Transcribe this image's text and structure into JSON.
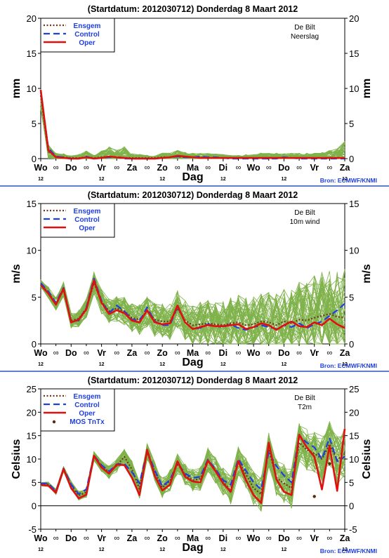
{
  "page": {
    "background": "#ffffff",
    "divider_color": "#3050c0"
  },
  "styles": {
    "ensgem_color": "#6b3a1e",
    "control_color": "#1f3fe0",
    "oper_color": "#e01010",
    "member_color": "#7fb24a",
    "mos_color": "#5a2a10",
    "legend_text_color": "#1f3fe0",
    "source_color": "#1f3fe0"
  },
  "x_axis": {
    "days": [
      "Wo",
      "Do",
      "Vr",
      "Za",
      "Zo",
      "Ma",
      "Di",
      "Wo",
      "Do",
      "Vr",
      "Za"
    ],
    "xlabel": "Dag",
    "hour_label": "12",
    "midnight_symbol": "∞"
  },
  "chart_data": [
    {
      "type": "line",
      "title": "(Startdatum: 2012030712)   Donderdag  8 Maart    2012",
      "station": "De Bilt",
      "variable": "Neerslag",
      "ylabel_left": "mm",
      "ylabel_right": "mm",
      "xlabel": "Dag",
      "ylim": [
        0,
        20
      ],
      "yticks": [
        0,
        5,
        10,
        15,
        20
      ],
      "x": [
        0,
        1,
        2,
        3,
        4,
        5,
        6,
        7,
        8,
        9,
        10,
        11,
        12,
        13,
        14,
        15,
        16,
        17,
        18,
        19,
        20,
        21,
        22,
        23,
        24,
        25,
        26,
        27,
        28,
        29,
        30,
        31,
        32,
        33,
        34,
        35,
        36,
        37,
        38,
        39,
        40
      ],
      "legend": [
        "Ensgem",
        "Control",
        "Oper"
      ],
      "source": "Bron: ECMWF/KNMI",
      "series": [
        {
          "name": "Ensgem",
          "style": "dotted",
          "values": [
            9.0,
            1.0,
            0.3,
            0.2,
            0.1,
            0.1,
            0.2,
            0.1,
            0.2,
            0.3,
            0.2,
            0.1,
            0.1,
            0.1,
            0.1,
            0.1,
            0.2,
            0.2,
            0.3,
            0.2,
            0.2,
            0.2,
            0.1,
            0.1,
            0.1,
            0.1,
            0.1,
            0.1,
            0.1,
            0.1,
            0.1,
            0.1,
            0.1,
            0.1,
            0.1,
            0.1,
            0.1,
            0.1,
            0.1,
            0.1,
            0.1
          ]
        },
        {
          "name": "Control",
          "style": "dashed",
          "values": [
            9.5,
            1.5,
            0.3,
            0.2,
            0,
            0,
            0.3,
            0,
            0.1,
            0.2,
            0.2,
            0,
            0,
            0,
            0,
            0,
            0.1,
            0.2,
            0.3,
            0.2,
            0.2,
            0.3,
            0.2,
            0.2,
            0.1,
            0,
            0,
            0,
            0,
            0,
            0,
            0,
            0.2,
            0.1,
            0,
            0,
            0,
            0,
            0,
            0,
            0
          ]
        },
        {
          "name": "Oper",
          "style": "solid",
          "values": [
            9.8,
            1.2,
            0.2,
            0.1,
            0,
            0,
            0.2,
            0,
            0.1,
            0.3,
            0.2,
            0.1,
            0,
            0,
            0,
            0,
            0.1,
            0.2,
            0.4,
            0.3,
            0.2,
            0.1,
            0.1,
            0.1,
            0.1,
            0.1,
            0.1,
            0.1,
            0.1,
            0.1,
            0.1,
            0.1,
            0.1,
            0.1,
            0.1,
            0.1,
            0.1,
            0.1,
            0.1,
            0.1,
            0.1
          ]
        }
      ],
      "ensemble_band": {
        "base": [
          8.5,
          1.0,
          0.3,
          0.2,
          0.1,
          0.1,
          0.3,
          0.1,
          0.3,
          0.5,
          0.3,
          0.2,
          0.1,
          0.1,
          0.1,
          0.1,
          0.2,
          0.2,
          0.4,
          0.3,
          0.2,
          0.2,
          0.2,
          0.2,
          0.1,
          0.1,
          0.1,
          0.1,
          0.1,
          0.2,
          0.2,
          0.2,
          0.2,
          0.2,
          0.2,
          0.2,
          0.2,
          0.2,
          0.3,
          0.3,
          0.5
        ],
        "spread": [
          1.5,
          1.0,
          0.5,
          0.5,
          0.3,
          0.5,
          0.8,
          0.4,
          0.8,
          1.2,
          1.0,
          1.5,
          0.6,
          0.5,
          0.4,
          0.3,
          0.6,
          0.6,
          0.8,
          0.6,
          0.6,
          0.6,
          0.6,
          0.5,
          0.5,
          0.4,
          0.4,
          0.5,
          0.5,
          0.6,
          0.6,
          0.6,
          0.5,
          0.6,
          0.6,
          0.6,
          0.6,
          0.7,
          0.9,
          1.1,
          2.0
        ]
      }
    },
    {
      "type": "line",
      "title": "(Startdatum: 2012030712)   Donderdag  8 Maart    2012",
      "station": "De Bilt",
      "variable": "10m wind",
      "ylabel_left": "m/s",
      "ylabel_right": "m/s",
      "xlabel": "Dag",
      "ylim": [
        0,
        15
      ],
      "yticks": [
        0,
        5,
        10,
        15
      ],
      "x": [
        0,
        1,
        2,
        3,
        4,
        5,
        6,
        7,
        8,
        9,
        10,
        11,
        12,
        13,
        14,
        15,
        16,
        17,
        18,
        19,
        20,
        21,
        22,
        23,
        24,
        25,
        26,
        27,
        28,
        29,
        30,
        31,
        32,
        33,
        34,
        35,
        36,
        37,
        38,
        39,
        40
      ],
      "legend": [
        "Ensgem",
        "Control",
        "Oper"
      ],
      "source": "Bron: ECMWF/KNMI",
      "series": [
        {
          "name": "Ensgem",
          "style": "dotted",
          "values": [
            6.4,
            5.5,
            4.3,
            5.8,
            2.5,
            2.7,
            3.8,
            6.5,
            4.5,
            3.5,
            3.8,
            3.5,
            2.8,
            2.6,
            3.5,
            2.6,
            2.4,
            2.4,
            3.8,
            2.5,
            2.0,
            2.1,
            2.2,
            2.1,
            2.0,
            2.2,
            2.3,
            2.0,
            2.1,
            2.4,
            2.3,
            2.0,
            2.4,
            2.2,
            2.6,
            2.5,
            2.8,
            3.0,
            3.2,
            2.9,
            2.8
          ]
        },
        {
          "name": "Control",
          "style": "dashed",
          "values": [
            6.5,
            5.6,
            4.4,
            6.0,
            2.4,
            2.5,
            3.9,
            7.0,
            4.6,
            3.3,
            4.1,
            3.5,
            2.6,
            2.5,
            3.9,
            2.4,
            2.0,
            2.0,
            4.0,
            2.3,
            1.6,
            1.7,
            2.1,
            1.9,
            1.8,
            2.1,
            1.7,
            1.5,
            1.8,
            2.0,
            1.8,
            1.6,
            2.0,
            1.8,
            2.2,
            1.7,
            2.1,
            2.4,
            3.0,
            3.6,
            4.3
          ]
        },
        {
          "name": "Oper",
          "style": "solid",
          "values": [
            6.3,
            5.4,
            4.2,
            5.9,
            2.3,
            2.6,
            3.7,
            6.8,
            4.4,
            3.2,
            3.6,
            3.3,
            2.5,
            2.3,
            3.6,
            2.3,
            2.1,
            2.2,
            4.1,
            2.3,
            1.6,
            1.8,
            2.0,
            1.9,
            1.9,
            2.0,
            2.1,
            1.6,
            1.8,
            2.2,
            2.0,
            1.5,
            2.0,
            2.4,
            1.9,
            1.8,
            2.3,
            2.0,
            2.7,
            2.1,
            1.7
          ]
        }
      ],
      "ensemble_band": {
        "base": [
          6.4,
          5.5,
          4.3,
          5.8,
          2.5,
          2.7,
          3.8,
          6.5,
          4.5,
          3.5,
          3.8,
          3.5,
          2.8,
          2.6,
          3.5,
          2.6,
          2.4,
          2.4,
          3.8,
          2.5,
          2.0,
          2.1,
          2.2,
          2.1,
          2.0,
          2.2,
          2.3,
          2.0,
          2.1,
          2.4,
          2.3,
          2.0,
          2.4,
          2.2,
          2.6,
          2.5,
          2.8,
          3.0,
          3.2,
          2.9,
          2.8
        ],
        "spread": [
          0.5,
          0.6,
          0.7,
          0.8,
          0.8,
          0.9,
          1.0,
          1.2,
          1.3,
          1.3,
          1.4,
          1.5,
          1.5,
          1.6,
          1.7,
          1.8,
          1.9,
          2.0,
          2.1,
          2.2,
          2.3,
          2.4,
          2.5,
          2.6,
          2.7,
          2.8,
          2.9,
          3.0,
          3.1,
          3.2,
          3.3,
          3.4,
          3.6,
          3.8,
          4.0,
          4.2,
          4.5,
          4.8,
          5.0,
          5.2,
          5.5
        ]
      }
    },
    {
      "type": "line",
      "title": "(Startdatum: 2012030712)   Donderdag  8 Maart    2012",
      "station": "De Bilt",
      "variable": "T2m",
      "ylabel_left": "Celsius",
      "ylabel_right": "Celsius",
      "xlabel": "Dag",
      "ylim": [
        -5,
        25
      ],
      "yticks": [
        -5,
        0,
        5,
        10,
        15,
        20,
        25
      ],
      "x": [
        0,
        1,
        2,
        3,
        4,
        5,
        6,
        7,
        8,
        9,
        10,
        11,
        12,
        13,
        14,
        15,
        16,
        17,
        18,
        19,
        20,
        21,
        22,
        23,
        24,
        25,
        26,
        27,
        28,
        29,
        30,
        31,
        32,
        33,
        34,
        35,
        36,
        37,
        38,
        39,
        40
      ],
      "legend": [
        "Ensgem",
        "Control",
        "Oper",
        "MOS TnTx"
      ],
      "source": "Bron: ECMWF/KNMI",
      "series": [
        {
          "name": "Ensgem",
          "style": "dotted",
          "values": [
            4.6,
            4.6,
            3.0,
            7.8,
            4.4,
            2.2,
            2.9,
            10.6,
            8.5,
            7.2,
            8.6,
            10.5,
            7.8,
            3.6,
            11.5,
            7.3,
            3.9,
            5.3,
            9.0,
            6.7,
            5.5,
            5.8,
            9.8,
            7.6,
            5.2,
            3.2,
            9.6,
            6.7,
            3.8,
            2.5,
            12.0,
            6.0,
            4.8,
            3.8,
            13.5,
            12.0,
            11.2,
            10.0,
            13.2,
            9.8,
            11.2
          ]
        },
        {
          "name": "Control",
          "style": "dashed",
          "values": [
            4.8,
            4.8,
            3.1,
            8.0,
            4.6,
            2.5,
            3.5,
            10.8,
            8.7,
            7.4,
            8.9,
            9.0,
            7.2,
            4.8,
            11.7,
            7.6,
            4.2,
            5.5,
            9.2,
            6.9,
            6.0,
            6.2,
            9.9,
            7.8,
            5.5,
            4.5,
            10.0,
            7.5,
            5.0,
            3.5,
            11.5,
            8.5,
            6.5,
            5.0,
            15.0,
            13.5,
            12.5,
            10.0,
            14.5,
            9.5,
            10.5
          ]
        },
        {
          "name": "Oper",
          "style": "solid",
          "values": [
            4.5,
            4.3,
            2.8,
            7.9,
            3.8,
            1.6,
            2.4,
            10.7,
            8.2,
            6.9,
            8.8,
            8.7,
            6.0,
            2.3,
            12.0,
            6.4,
            3.3,
            4.5,
            9.5,
            6.2,
            5.2,
            5.0,
            9.7,
            7.4,
            4.8,
            3.0,
            9.6,
            5.5,
            2.3,
            0.6,
            13.5,
            5.7,
            3.0,
            2.3,
            15.2,
            12.5,
            10.5,
            3.5,
            12.8,
            3.2,
            16.5
          ]
        }
      ],
      "mos_tntx": [
        {
          "x": 36,
          "y": 2.0
        },
        {
          "x": 38,
          "y": 9.0
        }
      ],
      "ensemble_band": {
        "base": [
          4.6,
          4.6,
          3.0,
          7.8,
          4.4,
          2.2,
          2.9,
          10.6,
          8.5,
          7.2,
          8.6,
          10.5,
          7.8,
          3.6,
          11.5,
          7.3,
          3.9,
          5.3,
          9.0,
          6.7,
          5.5,
          5.8,
          9.8,
          7.6,
          5.2,
          3.2,
          9.6,
          6.7,
          3.8,
          2.5,
          12.0,
          6.0,
          4.8,
          3.8,
          13.5,
          12.0,
          11.2,
          10.0,
          13.2,
          9.8,
          11.2
        ],
        "spread": [
          0.4,
          0.5,
          0.6,
          0.6,
          0.9,
          1.0,
          1.1,
          1.0,
          1.2,
          1.4,
          1.4,
          1.6,
          1.8,
          2.0,
          1.8,
          2.0,
          2.2,
          2.4,
          2.2,
          2.3,
          2.4,
          2.6,
          2.6,
          2.8,
          3.0,
          3.2,
          3.2,
          3.5,
          3.6,
          3.8,
          3.6,
          4.0,
          4.2,
          4.4,
          4.2,
          4.4,
          4.6,
          5.0,
          4.8,
          5.2,
          5.5
        ]
      }
    }
  ]
}
